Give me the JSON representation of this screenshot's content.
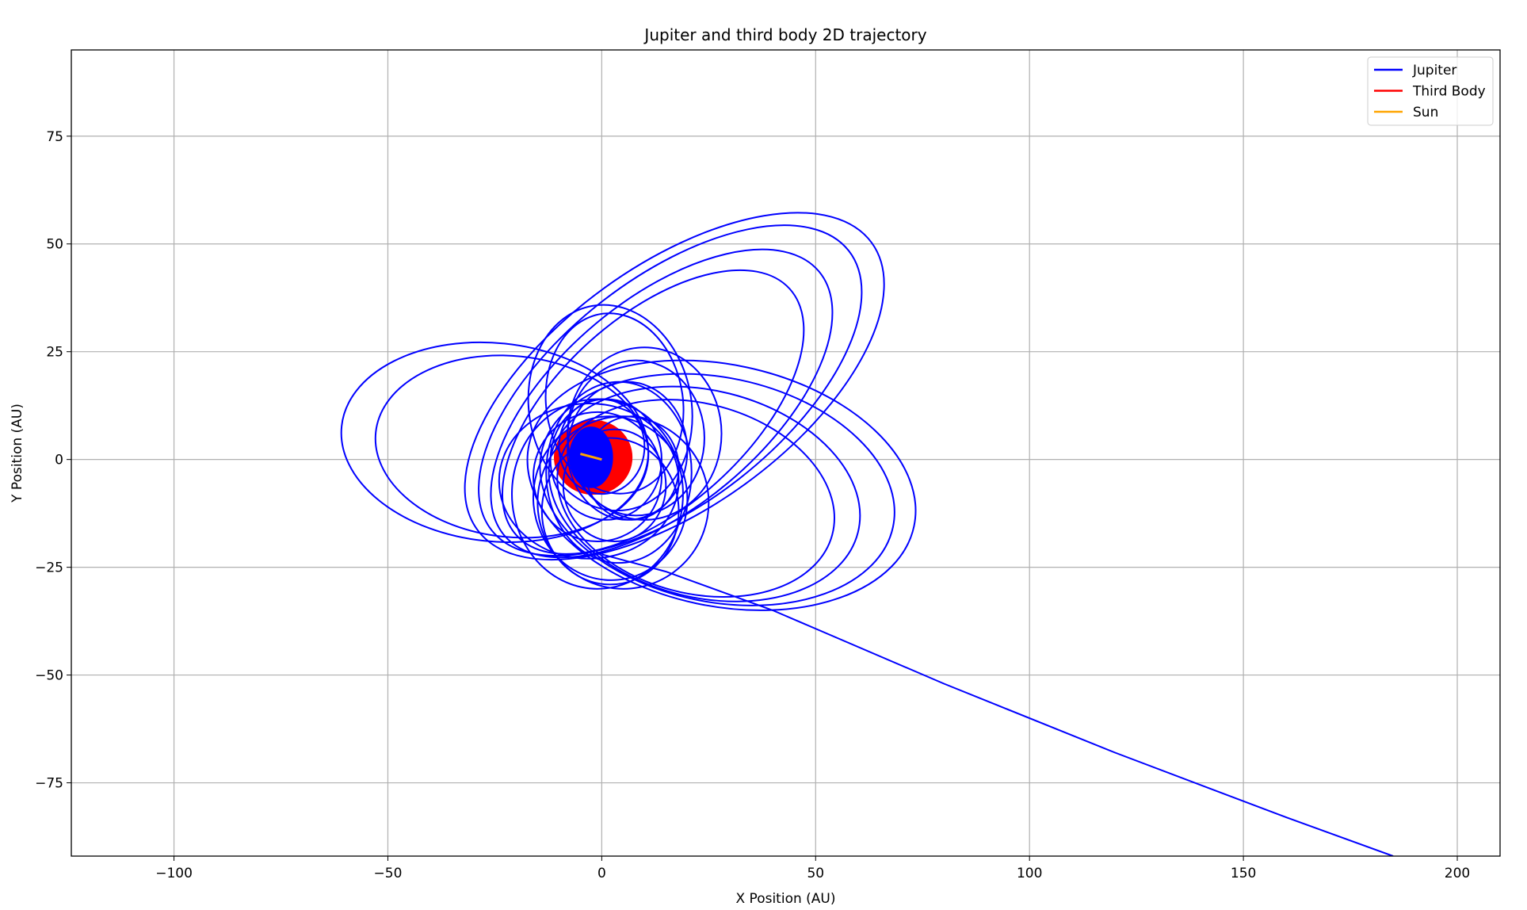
{
  "chart_data": {
    "type": "line",
    "title": "Jupiter and third body 2D trajectory",
    "xlabel": "X Position (AU)",
    "ylabel": "Y Position (AU)",
    "xlim": [
      -124,
      210
    ],
    "ylim": [
      -92,
      95
    ],
    "xticks": [
      -100,
      -50,
      0,
      50,
      100,
      150,
      200
    ],
    "xtick_labels": [
      "−100",
      "−50",
      "0",
      "50",
      "100",
      "150",
      "200"
    ],
    "yticks": [
      -75,
      -50,
      -25,
      0,
      25,
      50,
      75
    ],
    "ytick_labels": [
      "−75",
      "−50",
      "−25",
      "0",
      "25",
      "50",
      "75"
    ],
    "grid": true,
    "legend_position": "top-right",
    "series": [
      {
        "name": "Jupiter",
        "color": "#0000ff",
        "paths": {
          "ellipses": [
            {
              "cx": 17,
              "cy": 17,
              "rx": 57,
              "ry": 28,
              "rot": 36
            },
            {
              "cx": 16,
              "cy": 16,
              "rx": 53,
              "ry": 26,
              "rot": 38
            },
            {
              "cx": 14,
              "cy": 13,
              "rx": 48,
              "ry": 24,
              "rot": 40
            },
            {
              "cx": 12,
              "cy": 11,
              "rx": 43,
              "ry": 22,
              "rot": 42
            },
            {
              "cx": 28,
              "cy": -6,
              "rx": 46,
              "ry": 28,
              "rot": -12
            },
            {
              "cx": 27,
              "cy": -7,
              "rx": 42,
              "ry": 26,
              "rot": -12
            },
            {
              "cx": 24,
              "cy": -8,
              "rx": 37,
              "ry": 24,
              "rot": -14
            },
            {
              "cx": 22,
              "cy": -9,
              "rx": 33,
              "ry": 22,
              "rot": -15
            },
            {
              "cx": -25,
              "cy": 4,
              "rx": 36,
              "ry": 23,
              "rot": -6
            },
            {
              "cx": -21,
              "cy": 3,
              "rx": 32,
              "ry": 21,
              "rot": -6
            },
            {
              "cx": 2,
              "cy": 12,
              "rx": 19,
              "ry": 24,
              "rot": 10
            },
            {
              "cx": 3,
              "cy": 13,
              "rx": 16,
              "ry": 21,
              "rot": 8
            },
            {
              "cx": 10,
              "cy": 6,
              "rx": 18,
              "ry": 20,
              "rot": 0
            },
            {
              "cx": 8,
              "cy": 5,
              "rx": 16,
              "ry": 18,
              "rot": 0
            },
            {
              "cx": -1,
              "cy": -8,
              "rx": 20,
              "ry": 22,
              "rot": 0
            },
            {
              "cx": 2,
              "cy": -9,
              "rx": 18,
              "ry": 19,
              "rot": 5
            },
            {
              "cx": 5,
              "cy": -10,
              "rx": 20,
              "ry": 20,
              "rot": 0
            },
            {
              "cx": -3,
              "cy": -5,
              "rx": 21,
              "ry": 18,
              "rot": 0
            },
            {
              "cx": 4,
              "cy": -3,
              "rx": 17,
              "ry": 21,
              "rot": 0
            },
            {
              "cx": 6,
              "cy": 2,
              "rx": 14,
              "ry": 16,
              "rot": 0
            },
            {
              "cx": 1,
              "cy": 0,
              "rx": 13,
              "ry": 14,
              "rot": 0
            },
            {
              "cx": -1,
              "cy": -4,
              "rx": 15,
              "ry": 15,
              "rot": 0
            },
            {
              "cx": 3,
              "cy": -6,
              "rx": 12,
              "ry": 13,
              "rot": 0
            },
            {
              "cx": 7,
              "cy": -2,
              "rx": 11,
              "ry": 12,
              "rot": 0
            },
            {
              "cx": 0,
              "cy": 3,
              "rx": 10,
              "ry": 11,
              "rot": 0
            },
            {
              "cx": 2,
              "cy": -12,
              "rx": 16,
              "ry": 17,
              "rot": 0
            }
          ],
          "tail": [
            [
              0,
              -22
            ],
            [
              15,
              -26
            ],
            [
              40,
              -35
            ],
            [
              80,
              -52
            ],
            [
              120,
              -68
            ],
            [
              160,
              -83
            ],
            [
              185,
              -92
            ]
          ]
        }
      },
      {
        "name": "Third Body",
        "color": "#ff0000",
        "shape": {
          "cx": -2,
          "cy": 0.5,
          "rx": 9,
          "ry": 8.5
        },
        "inner": {
          "cx": -2.5,
          "cy": 0.5,
          "rx": 5,
          "ry": 7
        }
      },
      {
        "name": "Sun",
        "color": "#ffa500",
        "x": [
          -5,
          0
        ],
        "y": [
          1.3,
          0
        ]
      }
    ]
  }
}
